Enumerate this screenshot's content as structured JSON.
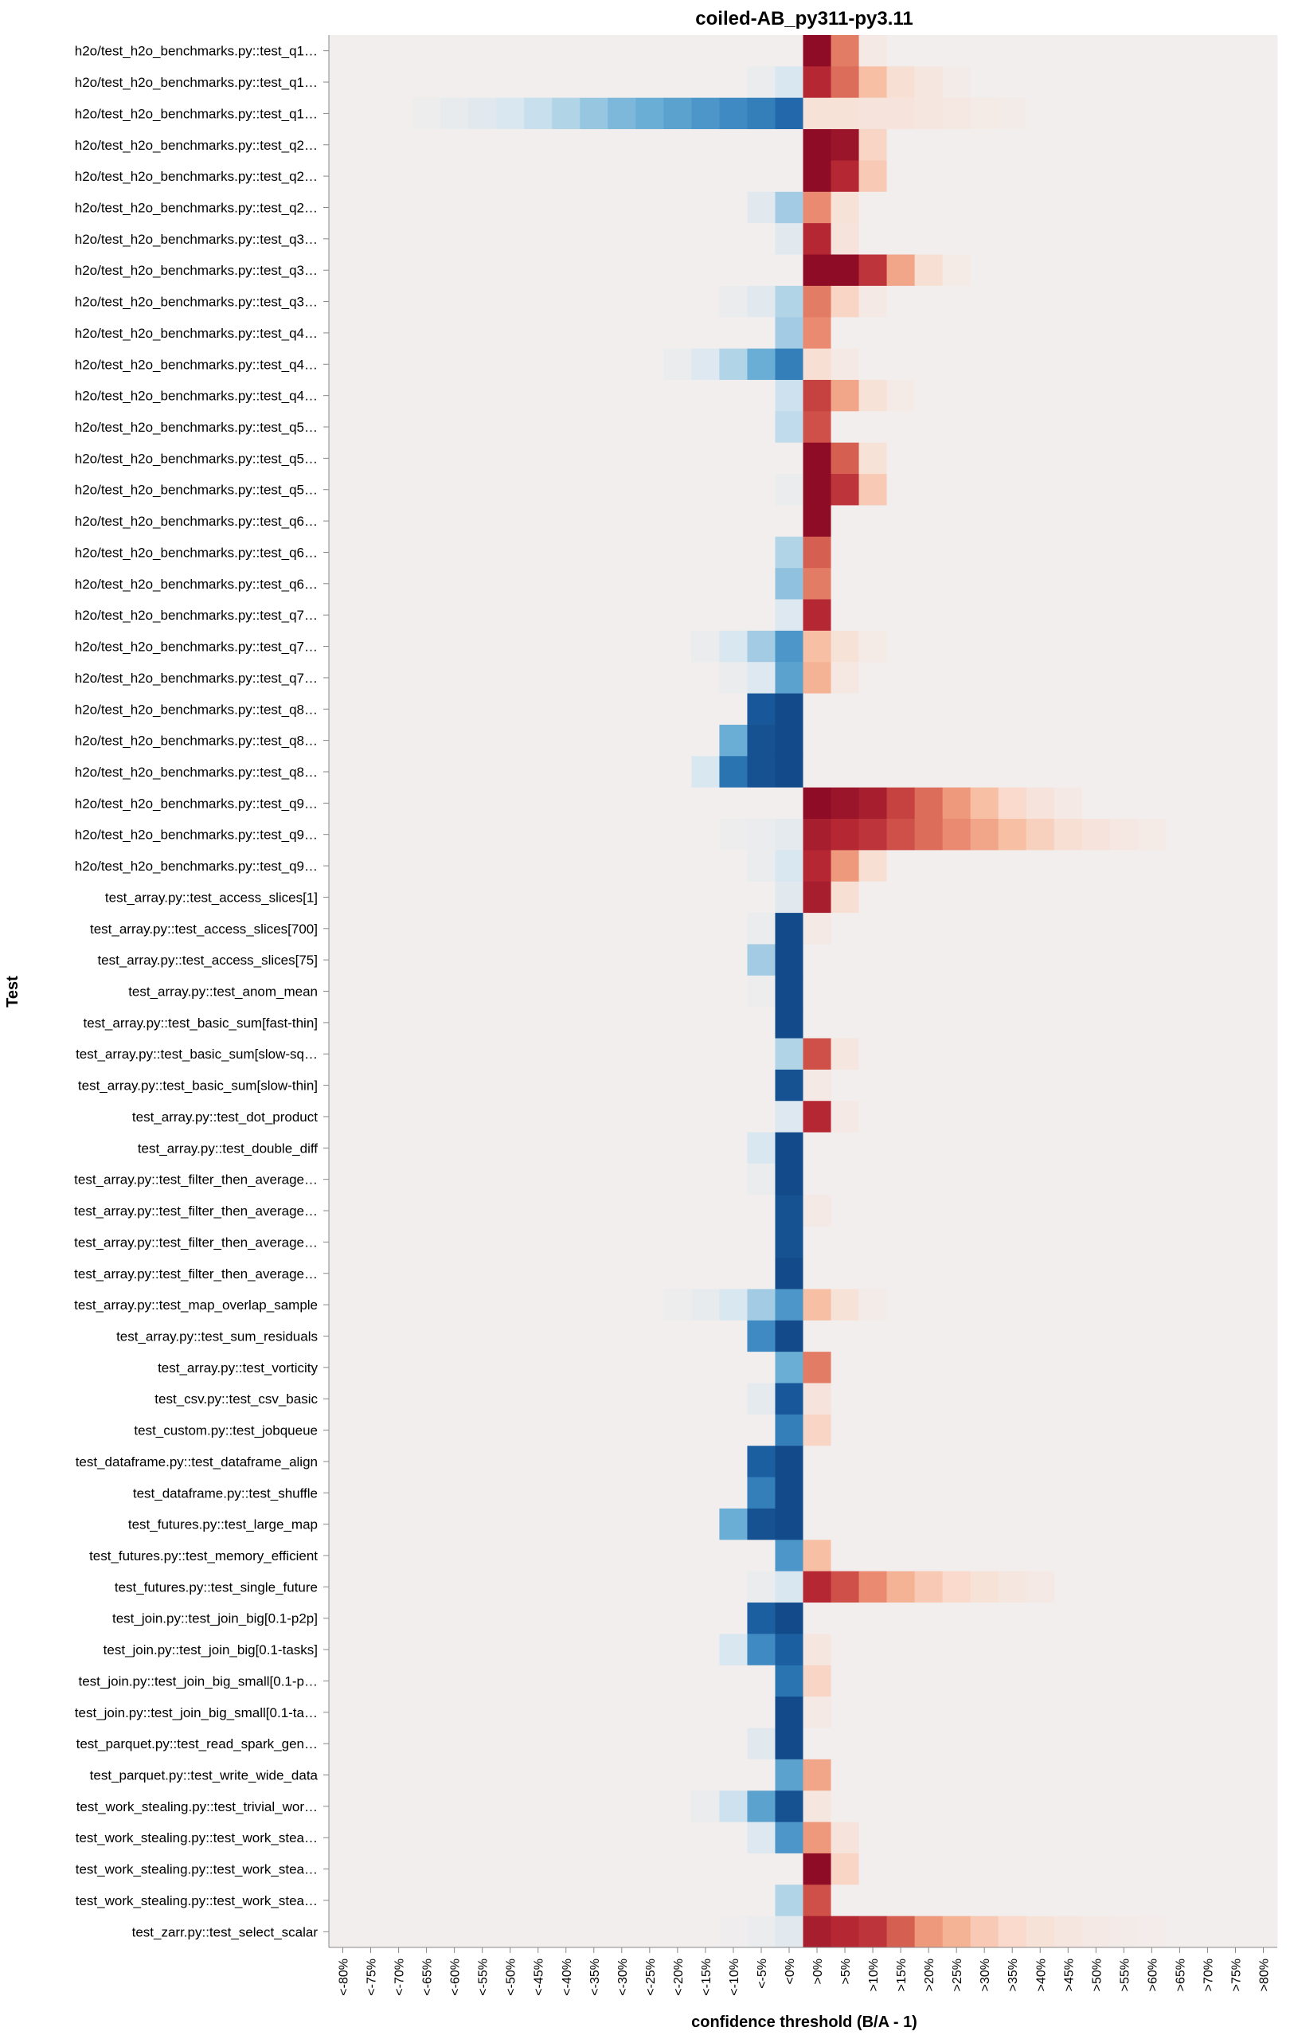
{
  "chart_data": {
    "type": "heatmap",
    "title": "coiled-AB_py311-py3.11",
    "xlabel": "confidence threshold (B/A - 1)",
    "ylabel": "Test",
    "colors": {
      "background": "#f2eeed",
      "negative_scale": [
        "#f2eeed",
        "#d6e6f1",
        "#a9cfe5",
        "#6aaed6",
        "#3a86c0",
        "#1c61a4",
        "#134a8a"
      ],
      "positive_scale": [
        "#f2eeed",
        "#f9ddd0",
        "#f6b799",
        "#ea8a70",
        "#d35a4d",
        "#b82a35",
        "#8e0c25"
      ]
    },
    "x_categories": [
      "<-80%",
      "<-75%",
      "<-70%",
      "<-65%",
      "<-60%",
      "<-55%",
      "<-50%",
      "<-45%",
      "<-40%",
      "<-35%",
      "<-30%",
      "<-25%",
      "<-20%",
      "<-15%",
      "<-10%",
      "<-5%",
      "<0%",
      ">0%",
      ">5%",
      ">10%",
      ">15%",
      ">20%",
      ">25%",
      ">30%",
      ">35%",
      ">40%",
      ">45%",
      ">50%",
      ">55%",
      ">60%",
      ">65%",
      ">70%",
      ">75%",
      ">80%"
    ],
    "rows": [
      {
        "label": "h2o/test_h2o_benchmarks.py::test_q1…",
        "neg": [],
        "pos": [
          1.0,
          0.55,
          0.05
        ]
      },
      {
        "label": "h2o/test_h2o_benchmarks.py::test_q1…",
        "neg": [
          0.15,
          0.05
        ],
        "pos": [
          0.85,
          0.6,
          0.3,
          0.15,
          0.08,
          0.03
        ]
      },
      {
        "label": "h2o/test_h2o_benchmarks.py::test_q1…",
        "neg": [
          0.8,
          0.7,
          0.65,
          0.6,
          0.55,
          0.5,
          0.45,
          0.38,
          0.3,
          0.22,
          0.15,
          0.1,
          0.06,
          0.03
        ],
        "pos": [
          0.12,
          0.12,
          0.1,
          0.1,
          0.08,
          0.06,
          0.04,
          0.03
        ]
      },
      {
        "label": "h2o/test_h2o_benchmarks.py::test_q2…",
        "neg": [],
        "pos": [
          1.0,
          0.95,
          0.2
        ]
      },
      {
        "label": "h2o/test_h2o_benchmarks.py::test_q2…",
        "neg": [],
        "pos": [
          1.0,
          0.85,
          0.25
        ]
      },
      {
        "label": "h2o/test_h2o_benchmarks.py::test_q2…",
        "neg": [
          0.35,
          0.1
        ],
        "pos": [
          0.5,
          0.12
        ]
      },
      {
        "label": "h2o/test_h2o_benchmarks.py::test_q3…",
        "neg": [
          0.1
        ],
        "pos": [
          0.85,
          0.1
        ]
      },
      {
        "label": "h2o/test_h2o_benchmarks.py::test_q3…",
        "neg": [],
        "pos": [
          1.0,
          1.0,
          0.8,
          0.4,
          0.15,
          0.04
        ]
      },
      {
        "label": "h2o/test_h2o_benchmarks.py::test_q3…",
        "neg": [
          0.3,
          0.1,
          0.04
        ],
        "pos": [
          0.55,
          0.2,
          0.05
        ]
      },
      {
        "label": "h2o/test_h2o_benchmarks.py::test_q4…",
        "neg": [
          0.35
        ],
        "pos": [
          0.5
        ]
      },
      {
        "label": "h2o/test_h2o_benchmarks.py::test_q4…",
        "neg": [
          0.7,
          0.5,
          0.3,
          0.12,
          0.05
        ],
        "pos": [
          0.15,
          0.05
        ]
      },
      {
        "label": "h2o/test_h2o_benchmarks.py::test_q4…",
        "neg": [
          0.2
        ],
        "pos": [
          0.75,
          0.4,
          0.12,
          0.04
        ]
      },
      {
        "label": "h2o/test_h2o_benchmarks.py::test_q5…",
        "neg": [
          0.25
        ],
        "pos": [
          0.7
        ]
      },
      {
        "label": "h2o/test_h2o_benchmarks.py::test_q5…",
        "neg": [],
        "pos": [
          1.0,
          0.65,
          0.12
        ]
      },
      {
        "label": "h2o/test_h2o_benchmarks.py::test_q5…",
        "neg": [
          0.05
        ],
        "pos": [
          1.0,
          0.8,
          0.25
        ]
      },
      {
        "label": "h2o/test_h2o_benchmarks.py::test_q6…",
        "neg": [],
        "pos": [
          1.0
        ]
      },
      {
        "label": "h2o/test_h2o_benchmarks.py::test_q6…",
        "neg": [
          0.3
        ],
        "pos": [
          0.65
        ]
      },
      {
        "label": "h2o/test_h2o_benchmarks.py::test_q6…",
        "neg": [
          0.4
        ],
        "pos": [
          0.55
        ]
      },
      {
        "label": "h2o/test_h2o_benchmarks.py::test_q7…",
        "neg": [
          0.12
        ],
        "pos": [
          0.85
        ]
      },
      {
        "label": "h2o/test_h2o_benchmarks.py::test_q7…",
        "neg": [
          0.6,
          0.35,
          0.15,
          0.05
        ],
        "pos": [
          0.3,
          0.12,
          0.04
        ]
      },
      {
        "label": "h2o/test_h2o_benchmarks.py::test_q7…",
        "neg": [
          0.55,
          0.12,
          0.04
        ],
        "pos": [
          0.35,
          0.06
        ]
      },
      {
        "label": "h2o/test_h2o_benchmarks.py::test_q8…",
        "neg": [
          1.0,
          0.9
        ],
        "pos": []
      },
      {
        "label": "h2o/test_h2o_benchmarks.py::test_q8…",
        "neg": [
          1.0,
          0.95,
          0.5
        ],
        "pos": []
      },
      {
        "label": "h2o/test_h2o_benchmarks.py::test_q8…",
        "neg": [
          1.0,
          0.95,
          0.75,
          0.15
        ],
        "pos": []
      },
      {
        "label": "h2o/test_h2o_benchmarks.py::test_q9…",
        "neg": [],
        "pos": [
          1.0,
          0.95,
          0.9,
          0.75,
          0.6,
          0.45,
          0.3,
          0.18,
          0.1,
          0.05
        ]
      },
      {
        "label": "h2o/test_h2o_benchmarks.py::test_q9…",
        "neg": [
          0.08,
          0.05,
          0.03
        ],
        "pos": [
          0.9,
          0.85,
          0.8,
          0.7,
          0.6,
          0.5,
          0.4,
          0.3,
          0.22,
          0.15,
          0.1,
          0.06,
          0.04
        ]
      },
      {
        "label": "h2o/test_h2o_benchmarks.py::test_q9…",
        "neg": [
          0.15,
          0.05
        ],
        "pos": [
          0.85,
          0.45,
          0.15
        ]
      },
      {
        "label": "test_array.py::test_access_slices[1]",
        "neg": [
          0.1
        ],
        "pos": [
          0.9,
          0.15
        ]
      },
      {
        "label": "test_array.py::test_access_slices[700]",
        "neg": [
          1.0,
          0.05
        ],
        "pos": [
          0.05
        ]
      },
      {
        "label": "test_array.py::test_access_slices[75]",
        "neg": [
          1.0,
          0.35
        ],
        "pos": []
      },
      {
        "label": "test_array.py::test_anom_mean",
        "neg": [
          1.0,
          0.03
        ],
        "pos": []
      },
      {
        "label": "test_array.py::test_basic_sum[fast-thin]",
        "neg": [
          1.0
        ],
        "pos": []
      },
      {
        "label": "test_array.py::test_basic_sum[slow-sq…",
        "neg": [
          0.3
        ],
        "pos": [
          0.7,
          0.08
        ]
      },
      {
        "label": "test_array.py::test_basic_sum[slow-thin]",
        "neg": [
          0.95
        ],
        "pos": [
          0.05
        ]
      },
      {
        "label": "test_array.py::test_dot_product",
        "neg": [
          0.12
        ],
        "pos": [
          0.85,
          0.05
        ]
      },
      {
        "label": "test_array.py::test_double_diff",
        "neg": [
          1.0,
          0.15
        ],
        "pos": []
      },
      {
        "label": "test_array.py::test_filter_then_average…",
        "neg": [
          1.0,
          0.05
        ],
        "pos": []
      },
      {
        "label": "test_array.py::test_filter_then_average…",
        "neg": [
          0.95
        ],
        "pos": [
          0.05
        ]
      },
      {
        "label": "test_array.py::test_filter_then_average…",
        "neg": [
          0.95
        ],
        "pos": []
      },
      {
        "label": "test_array.py::test_filter_then_average…",
        "neg": [
          1.0
        ],
        "pos": []
      },
      {
        "label": "test_array.py::test_map_overlap_sample",
        "neg": [
          0.6,
          0.35,
          0.15,
          0.06,
          0.03
        ],
        "pos": [
          0.3,
          0.12,
          0.03
        ]
      },
      {
        "label": "test_array.py::test_sum_residuals",
        "neg": [
          1.0,
          0.65
        ],
        "pos": []
      },
      {
        "label": "test_array.py::test_vorticity",
        "neg": [
          0.5
        ],
        "pos": [
          0.55
        ]
      },
      {
        "label": "test_csv.py::test_csv_basic",
        "neg": [
          0.9,
          0.08
        ],
        "pos": [
          0.1
        ]
      },
      {
        "label": "test_custom.py::test_jobqueue",
        "neg": [
          0.7
        ],
        "pos": [
          0.2
        ]
      },
      {
        "label": "test_dataframe.py::test_dataframe_align",
        "neg": [
          1.0,
          0.85
        ],
        "pos": []
      },
      {
        "label": "test_dataframe.py::test_shuffle",
        "neg": [
          1.0,
          0.7
        ],
        "pos": []
      },
      {
        "label": "test_futures.py::test_large_map",
        "neg": [
          1.0,
          0.95,
          0.5
        ],
        "pos": []
      },
      {
        "label": "test_futures.py::test_memory_efficient",
        "neg": [
          0.6
        ],
        "pos": [
          0.3
        ]
      },
      {
        "label": "test_futures.py::test_single_future",
        "neg": [
          0.15,
          0.05
        ],
        "pos": [
          0.85,
          0.7,
          0.5,
          0.35,
          0.25,
          0.18,
          0.12,
          0.08,
          0.05
        ]
      },
      {
        "label": "test_join.py::test_join_big[0.1-p2p]",
        "neg": [
          1.0,
          0.85
        ],
        "pos": []
      },
      {
        "label": "test_join.py::test_join_big[0.1-tasks]",
        "neg": [
          0.85,
          0.65,
          0.15
        ],
        "pos": [
          0.08
        ]
      },
      {
        "label": "test_join.py::test_join_big_small[0.1-p…",
        "neg": [
          0.75
        ],
        "pos": [
          0.2
        ]
      },
      {
        "label": "test_join.py::test_join_big_small[0.1-ta…",
        "neg": [
          1.0
        ],
        "pos": [
          0.05
        ]
      },
      {
        "label": "test_parquet.py::test_read_spark_gen…",
        "neg": [
          1.0,
          0.1
        ],
        "pos": []
      },
      {
        "label": "test_parquet.py::test_write_wide_data",
        "neg": [
          0.55
        ],
        "pos": [
          0.4
        ]
      },
      {
        "label": "test_work_stealing.py::test_trivial_wor…",
        "neg": [
          0.95,
          0.55,
          0.2,
          0.05
        ],
        "pos": [
          0.08
        ]
      },
      {
        "label": "test_work_stealing.py::test_work_stea…",
        "neg": [
          0.6,
          0.12
        ],
        "pos": [
          0.45,
          0.1
        ]
      },
      {
        "label": "test_work_stealing.py::test_work_stea…",
        "neg": [],
        "pos": [
          1.0,
          0.2
        ]
      },
      {
        "label": "test_work_stealing.py::test_work_stea…",
        "neg": [
          0.3
        ],
        "pos": [
          0.7
        ]
      },
      {
        "label": "test_zarr.py::test_select_scalar",
        "neg": [
          0.1,
          0.04,
          0.02
        ],
        "pos": [
          0.9,
          0.85,
          0.8,
          0.65,
          0.45,
          0.35,
          0.25,
          0.18,
          0.12,
          0.08,
          0.05,
          0.03,
          0.02
        ]
      }
    ]
  }
}
